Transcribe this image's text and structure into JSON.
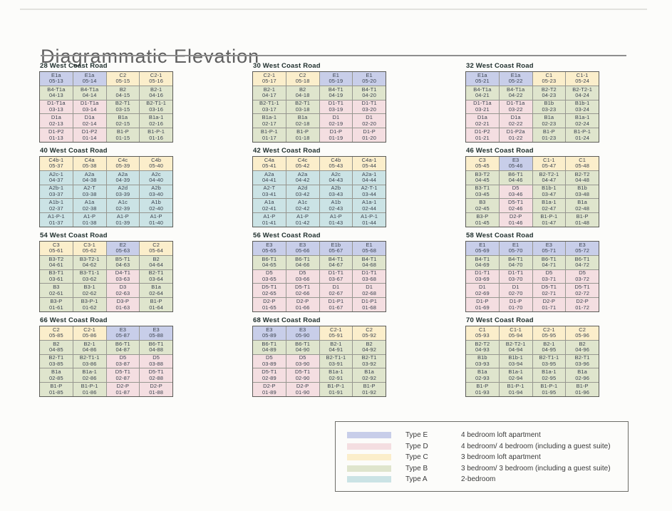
{
  "title": "Diagrammatic Elevation",
  "type_colors": {
    "E": "#c8cee9",
    "D": "#f4dee1",
    "C": "#fbeecb",
    "B": "#dfe5cd",
    "A": "#cbe3e5"
  },
  "blocks": [
    {
      "name": "28 West Coast Road",
      "rows": [
        [
          [
            "E1a",
            "05-13"
          ],
          [
            "E1a",
            "05-14"
          ],
          [
            "C2",
            "05-15"
          ],
          [
            "C2-1",
            "05-16"
          ]
        ],
        [
          [
            "B4-T1a",
            "04-13"
          ],
          [
            "B4-T1a",
            "04-14"
          ],
          [
            "B2",
            "04-15"
          ],
          [
            "B2-1",
            "04-16"
          ]
        ],
        [
          [
            "D1-T1a",
            "03-13"
          ],
          [
            "D1-T1a",
            "03-14"
          ],
          [
            "B2-T1",
            "03-15"
          ],
          [
            "B2-T1-1",
            "03-16"
          ]
        ],
        [
          [
            "D1a",
            "02-13"
          ],
          [
            "D1a",
            "02-14"
          ],
          [
            "B1a",
            "02-15"
          ],
          [
            "B1a-1",
            "02-16"
          ]
        ],
        [
          [
            "D1-P2",
            "01-13"
          ],
          [
            "D1-P2",
            "01-14"
          ],
          [
            "B1-P",
            "01-15"
          ],
          [
            "B1-P-1",
            "01-16"
          ]
        ]
      ]
    },
    {
      "name": "30 West Coast Road",
      "rows": [
        [
          [
            "C2-1",
            "05-17"
          ],
          [
            "C2",
            "05-18"
          ],
          [
            "E1",
            "05-19"
          ],
          [
            "E1",
            "05-20"
          ]
        ],
        [
          [
            "B2-1",
            "04-17"
          ],
          [
            "B2",
            "04-18"
          ],
          [
            "B4-T1",
            "04-19"
          ],
          [
            "B4-T1",
            "04-20"
          ]
        ],
        [
          [
            "B2-T1-1",
            "03-17"
          ],
          [
            "B2-T1",
            "03-18"
          ],
          [
            "D1-T1",
            "03-19"
          ],
          [
            "D1-T1",
            "03-20"
          ]
        ],
        [
          [
            "B1a-1",
            "02-17"
          ],
          [
            "B1a",
            "02-18"
          ],
          [
            "D1",
            "02-19"
          ],
          [
            "D1",
            "02-20"
          ]
        ],
        [
          [
            "B1-P-1",
            "01-17"
          ],
          [
            "B1-P",
            "01-18"
          ],
          [
            "D1-P",
            "01-19"
          ],
          [
            "D1-P",
            "01-20"
          ]
        ]
      ]
    },
    {
      "name": "32 West Coast Road",
      "rows": [
        [
          [
            "E1a",
            "05-21"
          ],
          [
            "E1a",
            "05-22"
          ],
          [
            "C1",
            "05-23"
          ],
          [
            "C1-1",
            "05-24"
          ]
        ],
        [
          [
            "B4-T1a",
            "04-21"
          ],
          [
            "B4-T1a",
            "04-22"
          ],
          [
            "B2-T2",
            "04-23"
          ],
          [
            "B2-T2-1",
            "04-24"
          ]
        ],
        [
          [
            "D1-T1a",
            "03-21"
          ],
          [
            "D1-T1a",
            "03-22"
          ],
          [
            "B1b",
            "03-23"
          ],
          [
            "B1b-1",
            "03-24"
          ]
        ],
        [
          [
            "D1a",
            "02-21"
          ],
          [
            "D1a",
            "02-22"
          ],
          [
            "B1a",
            "02-23"
          ],
          [
            "B1a-1",
            "02-24"
          ]
        ],
        [
          [
            "D1-P2",
            "01-21"
          ],
          [
            "D1-P2a",
            "01-22"
          ],
          [
            "B1-P",
            "01-23"
          ],
          [
            "B1-P-1",
            "01-24"
          ]
        ]
      ]
    },
    {
      "name": "40 West Coast Road",
      "rows": [
        [
          [
            "C4b-1",
            "05-37"
          ],
          [
            "C4a",
            "05-38"
          ],
          [
            "C4c",
            "05-39"
          ],
          [
            "C4b",
            "05-40"
          ]
        ],
        [
          [
            "A2c-1",
            "04-37"
          ],
          [
            "A2a",
            "04-38"
          ],
          [
            "A2a",
            "04-39"
          ],
          [
            "A2c",
            "04-40"
          ]
        ],
        [
          [
            "A2b-1",
            "03-37"
          ],
          [
            "A2-T",
            "03-38"
          ],
          [
            "A2d",
            "03-39"
          ],
          [
            "A2b",
            "03-40"
          ]
        ],
        [
          [
            "A1b-1",
            "02-37"
          ],
          [
            "A1a",
            "02-38"
          ],
          [
            "A1c",
            "02-39"
          ],
          [
            "A1b",
            "02-40"
          ]
        ],
        [
          [
            "A1-P-1",
            "01-37"
          ],
          [
            "A1-P",
            "01-38"
          ],
          [
            "A1-P",
            "01-39"
          ],
          [
            "A1-P",
            "01-40"
          ]
        ]
      ]
    },
    {
      "name": "42 West Coast Road",
      "rows": [
        [
          [
            "C4a",
            "05-41"
          ],
          [
            "C4c",
            "05-42"
          ],
          [
            "C4b",
            "05-43"
          ],
          [
            "C4a-1",
            "05-44"
          ]
        ],
        [
          [
            "A2a",
            "04-41"
          ],
          [
            "A2a",
            "04-42"
          ],
          [
            "A2c",
            "04-43"
          ],
          [
            "A2a-1",
            "04-44"
          ]
        ],
        [
          [
            "A2-T",
            "03-41"
          ],
          [
            "A2d",
            "03-42"
          ],
          [
            "A2b",
            "03-43"
          ],
          [
            "A2-T-1",
            "03-44"
          ]
        ],
        [
          [
            "A1a",
            "02-41"
          ],
          [
            "A1c",
            "02-42"
          ],
          [
            "A1b",
            "02-43"
          ],
          [
            "A1a-1",
            "02-44"
          ]
        ],
        [
          [
            "A1-P",
            "01-41"
          ],
          [
            "A1-P",
            "01-42"
          ],
          [
            "A1-P",
            "01-43"
          ],
          [
            "A1-P-1",
            "01-44"
          ]
        ]
      ]
    },
    {
      "name": "46 West Coast Road",
      "rows": [
        [
          [
            "C3",
            "05-45"
          ],
          [
            "E3",
            "05-46"
          ],
          [
            "C1-1",
            "05-47"
          ],
          [
            "C1",
            "05-48"
          ]
        ],
        [
          [
            "B3-T2",
            "04-45"
          ],
          [
            "B6-T1",
            "04-46"
          ],
          [
            "B2-T2-1",
            "04-47"
          ],
          [
            "B2-T2",
            "04-48"
          ]
        ],
        [
          [
            "B3-T1",
            "03-45"
          ],
          [
            "D5",
            "03-46"
          ],
          [
            "B1b-1",
            "03-47"
          ],
          [
            "B1b",
            "03-48"
          ]
        ],
        [
          [
            "B3",
            "02-45"
          ],
          [
            "D5-T1",
            "02-46"
          ],
          [
            "B1a-1",
            "02-47"
          ],
          [
            "B1a",
            "02-48"
          ]
        ],
        [
          [
            "B3-P",
            "01-45"
          ],
          [
            "D2-P",
            "01-46"
          ],
          [
            "B1-P-1",
            "01-47"
          ],
          [
            "B1-P",
            "01-48"
          ]
        ]
      ]
    },
    {
      "name": "54 West Coast Road",
      "rows": [
        [
          [
            "C3",
            "05-61"
          ],
          [
            "C3-1",
            "05-62"
          ],
          [
            "E2",
            "05-63"
          ],
          [
            "C2",
            "05-64"
          ]
        ],
        [
          [
            "B3-T2",
            "04-61"
          ],
          [
            "B3-T2-1",
            "04-62"
          ],
          [
            "B5-T1",
            "04-63"
          ],
          [
            "B2",
            "04-64"
          ]
        ],
        [
          [
            "B3-T1",
            "03-61"
          ],
          [
            "B3-T1-1",
            "03-62"
          ],
          [
            "D4-T1",
            "03-63"
          ],
          [
            "B2-T1",
            "03-64"
          ]
        ],
        [
          [
            "B3",
            "02-61"
          ],
          [
            "B3-1",
            "02-62"
          ],
          [
            "D3",
            "02-63"
          ],
          [
            "B1a",
            "02-64"
          ]
        ],
        [
          [
            "B3-P",
            "01-61"
          ],
          [
            "B3-P-1",
            "01-62"
          ],
          [
            "D3-P",
            "01-63"
          ],
          [
            "B1-P",
            "01-64"
          ]
        ]
      ]
    },
    {
      "name": "56 West Coast Road",
      "rows": [
        [
          [
            "E3",
            "05-65"
          ],
          [
            "E3",
            "05-66"
          ],
          [
            "E1b",
            "05-67"
          ],
          [
            "E1",
            "05-68"
          ]
        ],
        [
          [
            "B6-T1",
            "04-65"
          ],
          [
            "B6-T1",
            "04-66"
          ],
          [
            "B4-T1",
            "04-67"
          ],
          [
            "B4-T1",
            "04-68"
          ]
        ],
        [
          [
            "D5",
            "03-65"
          ],
          [
            "D5",
            "03-66"
          ],
          [
            "D1-T1",
            "03-67"
          ],
          [
            "D1-T1",
            "03-68"
          ]
        ],
        [
          [
            "D5-T1",
            "02-65"
          ],
          [
            "D5-T1",
            "02-66"
          ],
          [
            "D1",
            "02-67"
          ],
          [
            "D1",
            "02-68"
          ]
        ],
        [
          [
            "D2-P",
            "01-65"
          ],
          [
            "D2-P",
            "01-66"
          ],
          [
            "D1-P1",
            "01-67"
          ],
          [
            "D1-P1",
            "01-68"
          ]
        ]
      ]
    },
    {
      "name": "58 West Coast Road",
      "rows": [
        [
          [
            "E1",
            "05-69"
          ],
          [
            "E1",
            "05-70"
          ],
          [
            "E3",
            "05-71"
          ],
          [
            "E3",
            "05-72"
          ]
        ],
        [
          [
            "B4-T1",
            "04-69"
          ],
          [
            "B4-T1",
            "04-70"
          ],
          [
            "B6-T1",
            "04-71"
          ],
          [
            "B6-T1",
            "04-72"
          ]
        ],
        [
          [
            "D1-T1",
            "03-69"
          ],
          [
            "D1-T1",
            "03-70"
          ],
          [
            "D5",
            "03-71"
          ],
          [
            "D5",
            "03-72"
          ]
        ],
        [
          [
            "D1",
            "02-69"
          ],
          [
            "D1",
            "02-70"
          ],
          [
            "D5-T1",
            "02-71"
          ],
          [
            "D5-T1",
            "02-72"
          ]
        ],
        [
          [
            "D1-P",
            "01-69"
          ],
          [
            "D1-P",
            "01-70"
          ],
          [
            "D2-P",
            "01-71"
          ],
          [
            "D2-P",
            "01-72"
          ]
        ]
      ]
    },
    {
      "name": "66 West Coast Road",
      "rows": [
        [
          [
            "C2",
            "05-85"
          ],
          [
            "C2-1",
            "05-86"
          ],
          [
            "E3",
            "05-87"
          ],
          [
            "E3",
            "05-88"
          ]
        ],
        [
          [
            "B2",
            "04-85"
          ],
          [
            "B2-1",
            "04-86"
          ],
          [
            "B6-T1",
            "04-87"
          ],
          [
            "B6-T1",
            "04-88"
          ]
        ],
        [
          [
            "B2-T1",
            "03-85"
          ],
          [
            "B2-T1-1",
            "03-86"
          ],
          [
            "D5",
            "03-87"
          ],
          [
            "D5",
            "03-88"
          ]
        ],
        [
          [
            "B1a",
            "02-85"
          ],
          [
            "B1a-1",
            "02-86"
          ],
          [
            "D5-T1",
            "02-87"
          ],
          [
            "D5-T1",
            "02-88"
          ]
        ],
        [
          [
            "B1-P",
            "01-85"
          ],
          [
            "B1-P-1",
            "01-86"
          ],
          [
            "D2-P",
            "01-87"
          ],
          [
            "D2-P",
            "01-88"
          ]
        ]
      ]
    },
    {
      "name": "68 West Coast Road",
      "rows": [
        [
          [
            "E3",
            "05-89"
          ],
          [
            "E3",
            "05-90"
          ],
          [
            "C2-1",
            "05-91"
          ],
          [
            "C2",
            "05-92"
          ]
        ],
        [
          [
            "B6-T1",
            "04-89"
          ],
          [
            "B6-T1",
            "04-90"
          ],
          [
            "B2-1",
            "04-91"
          ],
          [
            "B2",
            "04-92"
          ]
        ],
        [
          [
            "D5",
            "03-89"
          ],
          [
            "D5",
            "03-90"
          ],
          [
            "B2-T1-1",
            "03-91"
          ],
          [
            "B2-T1",
            "03-92"
          ]
        ],
        [
          [
            "D5-T1",
            "02-89"
          ],
          [
            "D5-T1",
            "02-90"
          ],
          [
            "B1a-1",
            "02-91"
          ],
          [
            "B1a",
            "02-92"
          ]
        ],
        [
          [
            "D2-P",
            "01-89"
          ],
          [
            "D2-P",
            "01-90"
          ],
          [
            "B1-P-1",
            "01-91"
          ],
          [
            "B1-P",
            "01-92"
          ]
        ]
      ]
    },
    {
      "name": "70 West Coast Road",
      "rows": [
        [
          [
            "C1",
            "05-93"
          ],
          [
            "C1-1",
            "05-94"
          ],
          [
            "C2-1",
            "05-95"
          ],
          [
            "C2",
            "05-96"
          ]
        ],
        [
          [
            "B2-T2",
            "04-93"
          ],
          [
            "B2-T2-1",
            "04-94"
          ],
          [
            "B2-1",
            "04-95"
          ],
          [
            "B2",
            "04-96"
          ]
        ],
        [
          [
            "B1b",
            "03-93"
          ],
          [
            "B1b-1",
            "03-94"
          ],
          [
            "B2-T1-1",
            "03-95"
          ],
          [
            "B2-T1",
            "03-96"
          ]
        ],
        [
          [
            "B1a",
            "02-93"
          ],
          [
            "B1a-1",
            "02-94"
          ],
          [
            "B1a-1",
            "02-95"
          ],
          [
            "B1a",
            "02-96"
          ]
        ],
        [
          [
            "B1-P",
            "01-93"
          ],
          [
            "B1-P-1",
            "01-94"
          ],
          [
            "B1-P-1",
            "01-95"
          ],
          [
            "B1-P",
            "01-96"
          ]
        ]
      ]
    }
  ],
  "legend": {
    "items": [
      {
        "type_key": "E",
        "label": "Type E",
        "desc": "4 bedroom loft apartment"
      },
      {
        "type_key": "D",
        "label": "Type D",
        "desc": "4 bedroom/ 4 bedroom (including a guest suite)"
      },
      {
        "type_key": "C",
        "label": "Type C",
        "desc": "3 bedroom loft apartment"
      },
      {
        "type_key": "B",
        "label": "Type B",
        "desc": "3 bedroom/ 3 bedroom (including a guest suite)"
      },
      {
        "type_key": "A",
        "label": "Type A",
        "desc": "2-bedroom"
      }
    ]
  }
}
